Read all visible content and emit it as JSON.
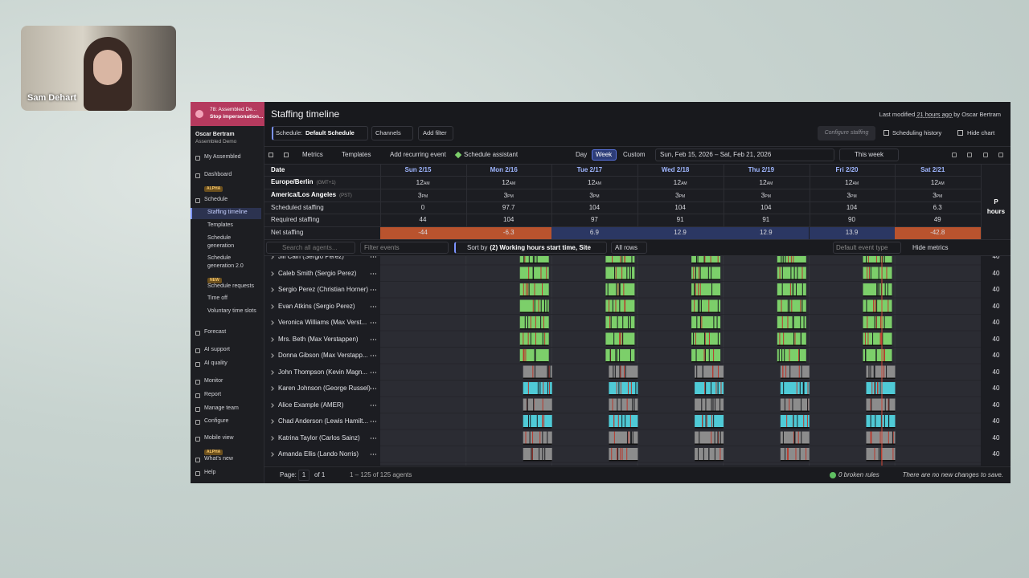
{
  "presenter": {
    "name": "Sam Dehart"
  },
  "sidebar": {
    "banner": [
      "78: Assembled De...",
      "Stop impersonation..."
    ],
    "user": "Oscar Bertram",
    "org": "Assembled Demo",
    "nav": [
      {
        "label": "My Assembled"
      },
      {
        "label": "Dashboard",
        "badge": "ALPHA"
      },
      {
        "label": "Schedule",
        "children": [
          {
            "label": "Staffing timeline",
            "active": true
          },
          {
            "label": "Templates"
          },
          {
            "label": "Schedule generation"
          },
          {
            "label": "Schedule generation 2.0",
            "badge": "NEW"
          },
          {
            "label": "Schedule requests"
          },
          {
            "label": "Time off"
          },
          {
            "label": "Voluntary time slots"
          }
        ]
      },
      {
        "label": "Forecast"
      },
      {
        "label": "AI support"
      },
      {
        "label": "AI quality"
      },
      {
        "label": "Monitor"
      },
      {
        "label": "Report"
      },
      {
        "label": "Manage team"
      },
      {
        "label": "Configure"
      },
      {
        "label": "Mobile view",
        "badge": "ALPHA"
      },
      {
        "label": "What's new"
      },
      {
        "label": "Help"
      }
    ]
  },
  "header": {
    "title": "Staffing timeline",
    "last_modified": [
      "Last modified",
      "21 hours ago",
      "by Oscar Bertram"
    ]
  },
  "toolbar": {
    "schedule_label": "Schedule:",
    "schedule": "Default Schedule",
    "channels": "Channels",
    "add_filter": "Add filter",
    "configure": "Configure staffing",
    "history": "Scheduling history",
    "hide_chart": "Hide chart",
    "metrics": "Metrics",
    "templates": "Templates",
    "add_event": "Add recurring event",
    "assistant": "Schedule assistant",
    "views": [
      "Day",
      "Week",
      "Custom"
    ],
    "active_view": "Week",
    "date_range": "Sun, Feb 15, 2026 – Sat, Feb 21, 2026",
    "this_week": "This week"
  },
  "metrics_table": {
    "date_header": "Date",
    "days": [
      "Sun 2/15",
      "Mon 2/16",
      "Tue 2/17",
      "Wed 2/18",
      "Thu 2/19",
      "Fri 2/20",
      "Sat 2/21"
    ],
    "total_header": [
      "P",
      "hours"
    ],
    "rows": [
      {
        "label": "Europe/Berlin",
        "tz": "(GMT+1)",
        "values": [
          "12",
          "12",
          "12",
          "12",
          "12",
          "12",
          "12"
        ],
        "suffix": "AM"
      },
      {
        "label": "America/Los Angeles",
        "tz": "(PST)",
        "values": [
          "3",
          "3",
          "3",
          "3",
          "3",
          "3",
          "3"
        ],
        "suffix": "PM"
      },
      {
        "label": "Scheduled staffing",
        "values": [
          0,
          97.7,
          104,
          104,
          104,
          104,
          6.3
        ]
      },
      {
        "label": "Required staffing",
        "values": [
          44,
          104,
          97,
          91,
          91,
          90,
          49
        ]
      },
      {
        "label": "Net staffing",
        "values": [
          -44,
          -6.3,
          6.9,
          12.9,
          12.9,
          13.9,
          -42.8
        ],
        "highlight": true
      }
    ]
  },
  "filters": {
    "search": "Search all agents...",
    "events": "Filter events",
    "sort_label": "Sort by",
    "sort": "(2) Working hours start time, Site",
    "rows": "All rows",
    "event_type": "Default event type",
    "hide_metrics": "Hide metrics"
  },
  "agents": [
    {
      "name": "Jill Cain (Sergio Perez)",
      "hours": 40,
      "shift_color": "#7ccf6a"
    },
    {
      "name": "Caleb Smith (Sergio Perez)",
      "hours": 40,
      "shift_color": "#7ccf6a"
    },
    {
      "name": "Sergio Perez (Christian Horner)",
      "hours": 40,
      "shift_color": "#7ccf6a"
    },
    {
      "name": "Evan Atkins (Sergio Perez)",
      "hours": 40,
      "shift_color": "#7ccf6a"
    },
    {
      "name": "Veronica Williams (Max Verst...",
      "hours": 40,
      "shift_color": "#7ccf6a"
    },
    {
      "name": "Mrs. Beth (Max Verstappen)",
      "hours": 40,
      "shift_color": "#7ccf6a"
    },
    {
      "name": "Donna Gibson (Max Verstapp...",
      "hours": 40,
      "shift_color": "#7ccf6a"
    },
    {
      "name": "John Thompson (Kevin Magn...",
      "hours": 40,
      "shift_color": "#8c8c8c"
    },
    {
      "name": "Karen Johnson (George Russel)",
      "hours": 40,
      "shift_color": "#4fcad6"
    },
    {
      "name": "Alice Example (AMER)",
      "hours": 40,
      "shift_color": "#8c8c8c"
    },
    {
      "name": "Chad Anderson (Lewis Hamilt...",
      "hours": 40,
      "shift_color": "#4fcad6"
    },
    {
      "name": "Katrina Taylor (Carlos Sainz)",
      "hours": 40,
      "shift_color": "#8c8c8c"
    },
    {
      "name": "Amanda Ellis (Lando Norris)",
      "hours": 40,
      "shift_color": "#8c8c8c"
    }
  ],
  "footer": {
    "page_label": "Page:",
    "page": "1",
    "of": "of 1",
    "range": "1 – 125 of 125 agents",
    "rules": "0 broken rules",
    "changes": "There are no new changes to save."
  }
}
